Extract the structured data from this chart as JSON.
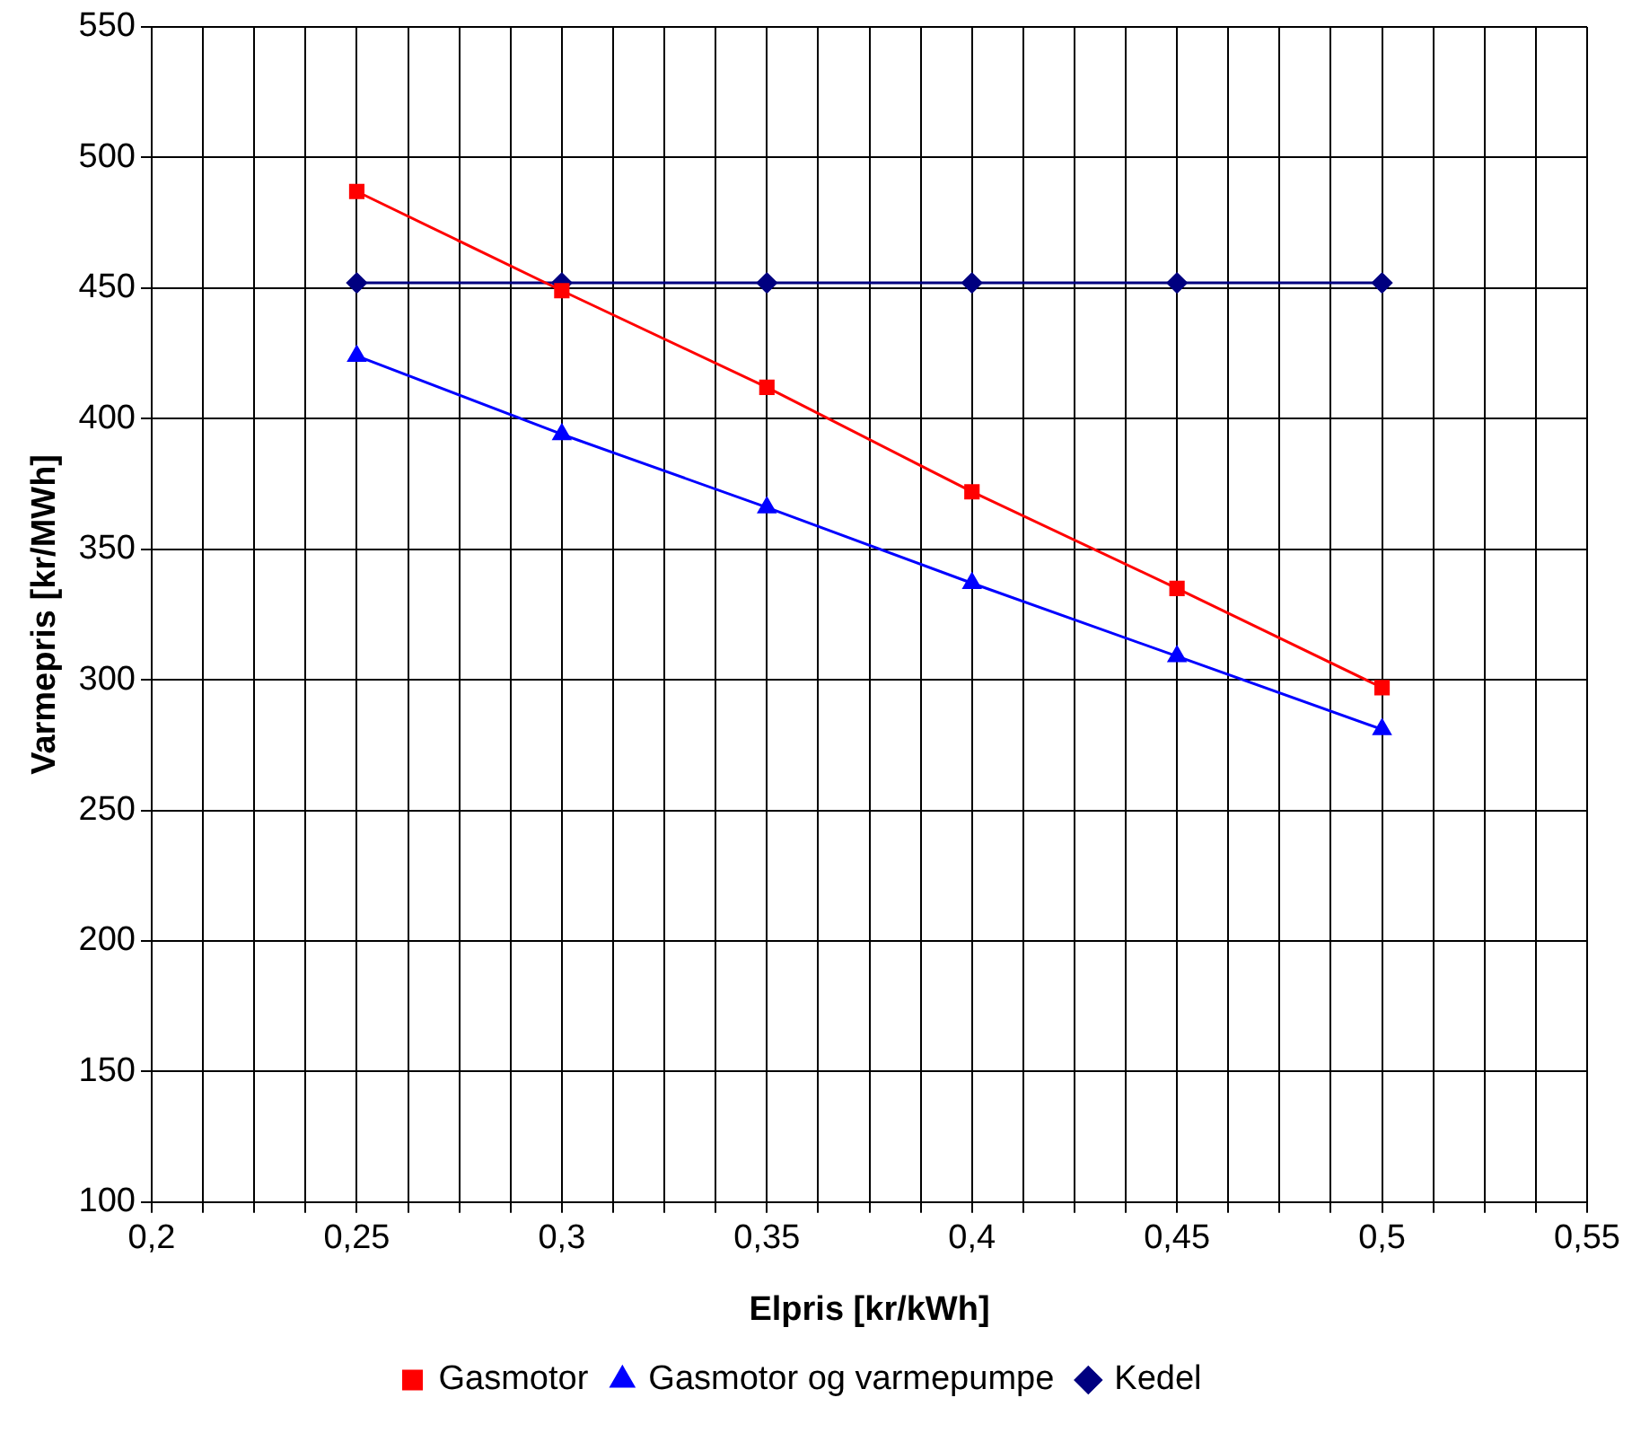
{
  "chart_data": {
    "type": "line",
    "xlabel": "Elpris [kr/kWh]",
    "ylabel": "Varmepris [kr/MWh]",
    "x": [
      0.25,
      0.3,
      0.35,
      0.4,
      0.45,
      0.5
    ],
    "series": [
      {
        "name": "Gasmotor",
        "color": "#ff0000",
        "marker": "square",
        "values": [
          487,
          449,
          412,
          372,
          335,
          297
        ]
      },
      {
        "name": "Gasmotor og varmepumpe",
        "color": "#0000ff",
        "marker": "triangle",
        "values": [
          424,
          394,
          366,
          337,
          309,
          281
        ]
      },
      {
        "name": "Kedel",
        "color": "#000080",
        "marker": "diamond",
        "values": [
          452,
          452,
          452,
          452,
          452,
          452
        ]
      }
    ],
    "xlim": [
      0.2,
      0.55
    ],
    "xticks": [
      {
        "value": 0.2,
        "label": "0,2"
      },
      {
        "value": 0.2125,
        "label": null
      },
      {
        "value": 0.225,
        "label": null
      },
      {
        "value": 0.2375,
        "label": null
      },
      {
        "value": 0.25,
        "label": "0,25"
      },
      {
        "value": 0.2625,
        "label": null
      },
      {
        "value": 0.275,
        "label": null
      },
      {
        "value": 0.2875,
        "label": null
      },
      {
        "value": 0.3,
        "label": "0,3"
      },
      {
        "value": 0.3125,
        "label": null
      },
      {
        "value": 0.325,
        "label": null
      },
      {
        "value": 0.3375,
        "label": null
      },
      {
        "value": 0.35,
        "label": "0,35"
      },
      {
        "value": 0.3625,
        "label": null
      },
      {
        "value": 0.375,
        "label": null
      },
      {
        "value": 0.3875,
        "label": null
      },
      {
        "value": 0.4,
        "label": "0,4"
      },
      {
        "value": 0.4125,
        "label": null
      },
      {
        "value": 0.425,
        "label": null
      },
      {
        "value": 0.4375,
        "label": null
      },
      {
        "value": 0.45,
        "label": "0,45"
      },
      {
        "value": 0.4625,
        "label": null
      },
      {
        "value": 0.475,
        "label": null
      },
      {
        "value": 0.4875,
        "label": null
      },
      {
        "value": 0.5,
        "label": "0,5"
      },
      {
        "value": 0.5125,
        "label": null
      },
      {
        "value": 0.525,
        "label": null
      },
      {
        "value": 0.5375,
        "label": null
      },
      {
        "value": 0.55,
        "label": "0,55"
      }
    ],
    "ylim": [
      100,
      550
    ],
    "yticks": [
      100,
      150,
      200,
      250,
      300,
      350,
      400,
      450,
      500,
      550
    ],
    "grid": true,
    "legend": "bottom",
    "line_style": "solid"
  }
}
